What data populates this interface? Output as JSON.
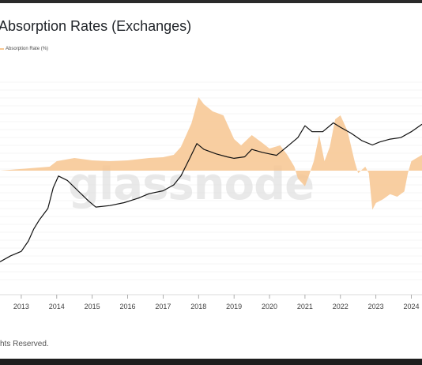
{
  "window": {
    "title": "Absorption Rates (Exchanges)"
  },
  "legend": {
    "label": "Absorption Rate (%)",
    "color": "#f7c690"
  },
  "footer": {
    "text": "hts Reserved."
  },
  "watermark": {
    "text": "glassnode"
  },
  "colors": {
    "price": "#111111",
    "absorption": "#f7c690",
    "grid": "#ececec"
  },
  "chart_data": {
    "type": "area",
    "title": "Absorption Rates (Exchanges)",
    "xlabel": "",
    "ylabel": "",
    "x_ticks": [
      "2013",
      "2014",
      "2015",
      "2016",
      "2017",
      "2018",
      "2019",
      "2020",
      "2021",
      "2022",
      "2023",
      "2024"
    ],
    "x_range": [
      2012.4,
      2024.3
    ],
    "grid": "horizontal",
    "legend_position": "top-left",
    "series": [
      {
        "name": "Absorption Rate (%)",
        "style": "filled area around baseline",
        "relative_scale": {
          "baseline": 0,
          "min": -1,
          "max": 1
        },
        "points": [
          [
            2012.4,
            0
          ],
          [
            2013.8,
            0.05
          ],
          [
            2014.0,
            0.12
          ],
          [
            2014.5,
            0.16
          ],
          [
            2015.0,
            0.13
          ],
          [
            2015.5,
            0.12
          ],
          [
            2016.0,
            0.13
          ],
          [
            2016.6,
            0.16
          ],
          [
            2017.0,
            0.17
          ],
          [
            2017.3,
            0.2
          ],
          [
            2017.5,
            0.3
          ],
          [
            2017.8,
            0.6
          ],
          [
            2018.0,
            0.93
          ],
          [
            2018.15,
            0.84
          ],
          [
            2018.4,
            0.75
          ],
          [
            2018.7,
            0.7
          ],
          [
            2019.0,
            0.4
          ],
          [
            2019.2,
            0.32
          ],
          [
            2019.5,
            0.45
          ],
          [
            2019.8,
            0.35
          ],
          [
            2020.0,
            0.28
          ],
          [
            2020.3,
            0.32
          ],
          [
            2020.5,
            0.2
          ],
          [
            2020.7,
            0.05
          ],
          [
            2020.8,
            -0.15
          ],
          [
            2021.0,
            -0.3
          ],
          [
            2021.1,
            -0.12
          ],
          [
            2021.25,
            0.12
          ],
          [
            2021.4,
            0.45
          ],
          [
            2021.55,
            0.12
          ],
          [
            2021.7,
            0.3
          ],
          [
            2021.85,
            0.65
          ],
          [
            2022.0,
            0.7
          ],
          [
            2022.2,
            0.5
          ],
          [
            2022.4,
            0.12
          ],
          [
            2022.5,
            -0.05
          ],
          [
            2022.7,
            0.05
          ],
          [
            2022.8,
            -0.05
          ],
          [
            2022.9,
            -0.75
          ],
          [
            2023.0,
            -0.62
          ],
          [
            2023.2,
            -0.55
          ],
          [
            2023.4,
            -0.45
          ],
          [
            2023.6,
            -0.5
          ],
          [
            2023.8,
            -0.4
          ],
          [
            2023.9,
            -0.05
          ],
          [
            2024.0,
            0.12
          ],
          [
            2024.3,
            0.2
          ]
        ]
      },
      {
        "name": "",
        "style": "line (price)",
        "relative_scale": {
          "min": 0,
          "max": 1
        },
        "points": [
          [
            2012.4,
            0.02
          ],
          [
            2012.7,
            0.06
          ],
          [
            2013.0,
            0.09
          ],
          [
            2013.2,
            0.16
          ],
          [
            2013.35,
            0.24
          ],
          [
            2013.5,
            0.3
          ],
          [
            2013.75,
            0.38
          ],
          [
            2013.9,
            0.52
          ],
          [
            2014.05,
            0.6
          ],
          [
            2014.3,
            0.57
          ],
          [
            2014.6,
            0.5
          ],
          [
            2014.9,
            0.43
          ],
          [
            2015.1,
            0.39
          ],
          [
            2015.5,
            0.4
          ],
          [
            2015.9,
            0.42
          ],
          [
            2016.3,
            0.45
          ],
          [
            2016.6,
            0.48
          ],
          [
            2017.0,
            0.5
          ],
          [
            2017.3,
            0.54
          ],
          [
            2017.5,
            0.6
          ],
          [
            2017.75,
            0.72
          ],
          [
            2017.95,
            0.82
          ],
          [
            2018.15,
            0.78
          ],
          [
            2018.5,
            0.75
          ],
          [
            2018.8,
            0.73
          ],
          [
            2019.0,
            0.72
          ],
          [
            2019.3,
            0.73
          ],
          [
            2019.5,
            0.78
          ],
          [
            2019.8,
            0.76
          ],
          [
            2020.0,
            0.75
          ],
          [
            2020.2,
            0.74
          ],
          [
            2020.5,
            0.8
          ],
          [
            2020.8,
            0.86
          ],
          [
            2021.0,
            0.94
          ],
          [
            2021.2,
            0.9
          ],
          [
            2021.5,
            0.9
          ],
          [
            2021.8,
            0.96
          ],
          [
            2022.0,
            0.93
          ],
          [
            2022.3,
            0.89
          ],
          [
            2022.6,
            0.84
          ],
          [
            2022.9,
            0.81
          ],
          [
            2023.1,
            0.83
          ],
          [
            2023.4,
            0.85
          ],
          [
            2023.7,
            0.86
          ],
          [
            2024.0,
            0.9
          ],
          [
            2024.3,
            0.95
          ]
        ]
      }
    ]
  }
}
